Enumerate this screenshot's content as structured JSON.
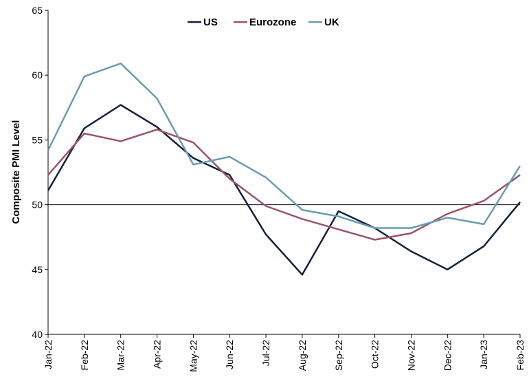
{
  "chart_data": {
    "type": "line",
    "title": "",
    "xlabel": "",
    "ylabel": "Composite PMI Level",
    "ylim": [
      40,
      65
    ],
    "yticks": [
      40,
      45,
      50,
      55,
      60,
      65
    ],
    "reference_line": 50,
    "grid": false,
    "legend_position": "top-center",
    "categories": [
      "Jan-22",
      "Feb-22",
      "Mar-22",
      "Apr-22",
      "May-22",
      "Jun-22",
      "Jul-22",
      "Aug-22",
      "Sep-22",
      "Oct-22",
      "Nov-22",
      "Dec-22",
      "Jan-23",
      "Feb-23"
    ],
    "series": [
      {
        "name": "US",
        "color": "#14213d",
        "values": [
          51.1,
          55.9,
          57.7,
          56.0,
          53.6,
          52.3,
          47.7,
          44.6,
          49.5,
          48.2,
          46.4,
          45.0,
          46.8,
          50.2
        ]
      },
      {
        "name": "Eurozone",
        "color": "#9b5467",
        "values": [
          52.3,
          55.5,
          54.9,
          55.8,
          54.8,
          52.0,
          49.9,
          48.9,
          48.1,
          47.3,
          47.8,
          49.3,
          50.3,
          52.3
        ]
      },
      {
        "name": "UK",
        "color": "#6a9bb0",
        "values": [
          54.2,
          59.9,
          60.9,
          58.2,
          53.1,
          53.7,
          52.1,
          49.6,
          49.1,
          48.2,
          48.2,
          49.0,
          48.5,
          53.0
        ]
      }
    ]
  }
}
